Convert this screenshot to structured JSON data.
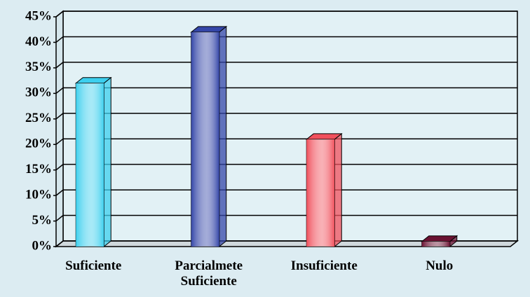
{
  "chart_data": {
    "type": "bar3d",
    "categories": [
      "Suficiente",
      "Parcialmete Suficiente",
      "Insuficiente",
      "Nulo"
    ],
    "values": [
      32,
      42,
      21,
      1
    ],
    "colors": [
      "#3ccfee",
      "#3446a8",
      "#f0505c",
      "#6a1232"
    ],
    "ylim": [
      0,
      45
    ],
    "yticks": [
      {
        "value": 0,
        "label": "0%"
      },
      {
        "value": 5,
        "label": "5%"
      },
      {
        "value": 10,
        "label": "10%"
      },
      {
        "value": 15,
        "label": "15%"
      },
      {
        "value": 20,
        "label": "20%"
      },
      {
        "value": 25,
        "label": "25%"
      },
      {
        "value": 30,
        "label": "30%"
      },
      {
        "value": 35,
        "label": "35%"
      },
      {
        "value": 40,
        "label": "40%"
      },
      {
        "value": 45,
        "label": "45%"
      }
    ],
    "grid": true
  }
}
